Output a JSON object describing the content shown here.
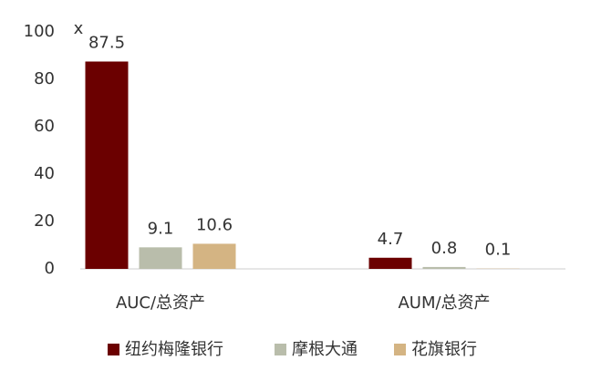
{
  "chart_data": {
    "type": "bar",
    "unit": "x",
    "categories": [
      "AUC/总资产",
      "AUM/总资产"
    ],
    "series": [
      {
        "name": "纽约梅隆银行",
        "color": "#6b0000",
        "values": [
          87.5,
          4.7
        ]
      },
      {
        "name": "摩根大通",
        "color": "#b9bdab",
        "values": [
          9.1,
          0.8
        ]
      },
      {
        "name": "花旗银行",
        "color": "#d4b483",
        "values": [
          10.6,
          0.1
        ]
      }
    ],
    "ylim": [
      0,
      100
    ],
    "yticks": [
      0,
      20,
      40,
      60,
      80,
      100
    ],
    "grid": false,
    "legend": "bottom"
  }
}
